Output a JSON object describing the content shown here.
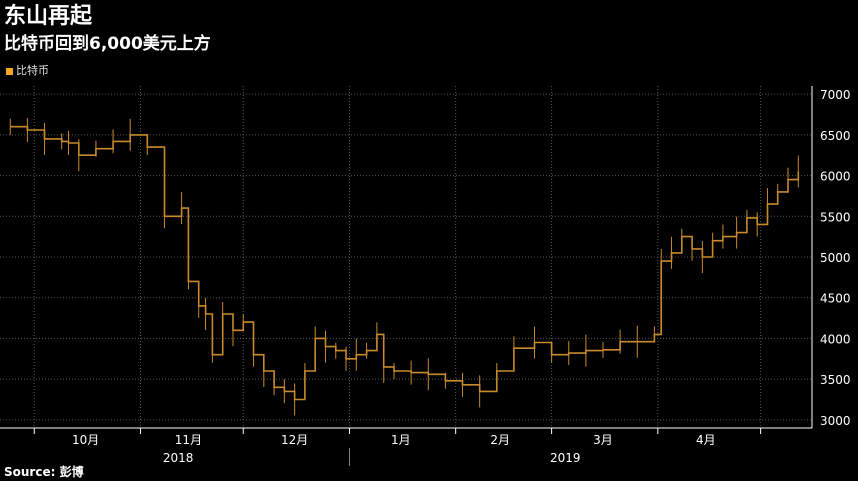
{
  "header": {
    "title": "东山再起",
    "subtitle": "比特币回到6,000美元上方"
  },
  "legend": {
    "label": "比特币",
    "color": "#f5a623"
  },
  "source": "Source: 彭博",
  "colors": {
    "background": "#000000",
    "grid": "#555555",
    "axis": "#ffffff",
    "series": "#c98a2e"
  },
  "chart_data": {
    "type": "bar",
    "title": "东山再起",
    "subtitle": "比特币回到6,000美元上方",
    "y_ticks": [
      3000,
      3500,
      4000,
      4500,
      5000,
      5500,
      6000,
      6500,
      7000
    ],
    "ylim": [
      2900,
      7100
    ],
    "months": [
      "10月",
      "11月",
      "12月",
      "1月",
      "2月",
      "3月",
      "4月"
    ],
    "years": [
      "2018",
      "2019"
    ],
    "grid": true,
    "series": [
      {
        "name": "比特币",
        "x": [
          "2018-09-24",
          "2018-09-29",
          "2018-10-04",
          "2018-10-09",
          "2018-10-11",
          "2018-10-14",
          "2018-10-19",
          "2018-10-24",
          "2018-10-29",
          "2018-11-03",
          "2018-11-08",
          "2018-11-13",
          "2018-11-15",
          "2018-11-18",
          "2018-11-20",
          "2018-11-22",
          "2018-11-25",
          "2018-11-28",
          "2018-12-01",
          "2018-12-04",
          "2018-12-07",
          "2018-12-10",
          "2018-12-13",
          "2018-12-16",
          "2018-12-19",
          "2018-12-22",
          "2018-12-25",
          "2018-12-28",
          "2018-12-31",
          "2019-01-03",
          "2019-01-06",
          "2019-01-09",
          "2019-01-11",
          "2019-01-14",
          "2019-01-19",
          "2019-01-24",
          "2019-01-29",
          "2019-02-03",
          "2019-02-08",
          "2019-02-13",
          "2019-02-18",
          "2019-02-24",
          "2019-03-01",
          "2019-03-06",
          "2019-03-11",
          "2019-03-16",
          "2019-03-21",
          "2019-03-26",
          "2019-03-31",
          "2019-04-02",
          "2019-04-05",
          "2019-04-08",
          "2019-04-11",
          "2019-04-14",
          "2019-04-17",
          "2019-04-20",
          "2019-04-24",
          "2019-04-27",
          "2019-04-30",
          "2019-05-03",
          "2019-05-06",
          "2019-05-09",
          "2019-05-12"
        ],
        "values": [
          6600,
          6560,
          6450,
          6420,
          6400,
          6250,
          6330,
          6420,
          6500,
          6350,
          5500,
          5600,
          4700,
          4400,
          4300,
          3800,
          4300,
          4100,
          4200,
          3800,
          3600,
          3400,
          3350,
          3250,
          3600,
          4000,
          3900,
          3850,
          3750,
          3800,
          3850,
          4050,
          3650,
          3600,
          3580,
          3560,
          3480,
          3430,
          3350,
          3600,
          3880,
          3950,
          3800,
          3820,
          3850,
          3860,
          3960,
          3960,
          4050,
          4950,
          5050,
          5250,
          5100,
          5000,
          5200,
          5250,
          5300,
          5480,
          5400,
          5650,
          5800,
          5950,
          6050
        ]
      }
    ]
  }
}
